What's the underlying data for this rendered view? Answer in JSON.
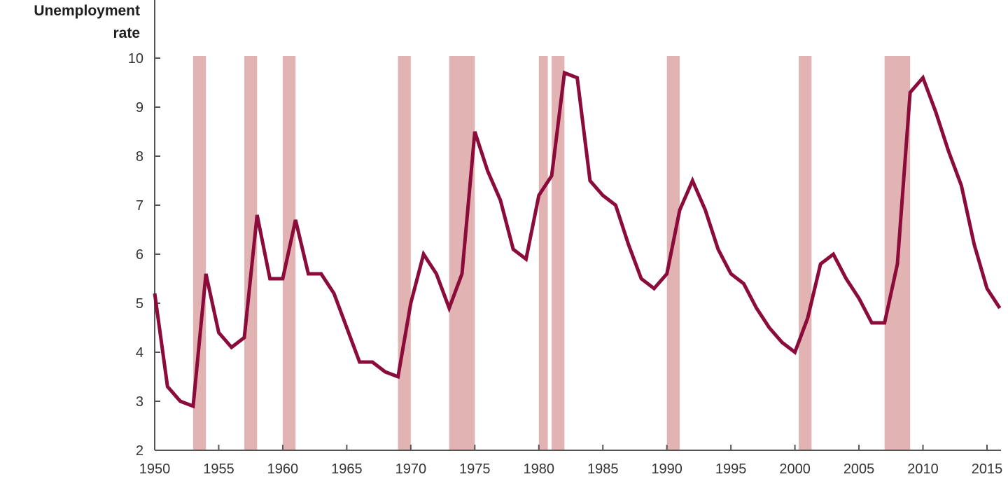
{
  "chart_data": {
    "type": "line",
    "title": "",
    "xlabel": "",
    "ylabel": [
      "Unemployment",
      "rate"
    ],
    "xlim": [
      1950,
      2016
    ],
    "ylim": [
      2,
      10
    ],
    "x_ticks": [
      1950,
      1955,
      1960,
      1965,
      1970,
      1975,
      1980,
      1985,
      1990,
      1995,
      2000,
      2005,
      2010,
      2015
    ],
    "y_ticks": [
      2,
      3,
      4,
      5,
      6,
      7,
      8,
      9,
      10
    ],
    "grid": false,
    "legend": null,
    "series": [
      {
        "name": "Unemployment rate",
        "color": "#8b0b3a",
        "x": [
          1950,
          1951,
          1952,
          1953,
          1954,
          1955,
          1956,
          1957,
          1958,
          1959,
          1960,
          1961,
          1962,
          1963,
          1964,
          1965,
          1966,
          1967,
          1968,
          1969,
          1970,
          1971,
          1972,
          1973,
          1974,
          1975,
          1976,
          1977,
          1978,
          1979,
          1980,
          1981,
          1982,
          1983,
          1984,
          1985,
          1986,
          1987,
          1988,
          1989,
          1990,
          1991,
          1992,
          1993,
          1994,
          1995,
          1996,
          1997,
          1998,
          1999,
          2000,
          2001,
          2002,
          2003,
          2004,
          2005,
          2006,
          2007,
          2008,
          2009,
          2010,
          2011,
          2012,
          2013,
          2014,
          2015,
          2016
        ],
        "values": [
          5.2,
          3.3,
          3.0,
          2.9,
          5.6,
          4.4,
          4.1,
          4.3,
          6.8,
          5.5,
          5.5,
          6.7,
          5.6,
          5.6,
          5.2,
          4.5,
          3.8,
          3.8,
          3.6,
          3.5,
          5.0,
          6.0,
          5.6,
          4.9,
          5.6,
          8.5,
          7.7,
          7.1,
          6.1,
          5.9,
          7.2,
          7.6,
          9.7,
          9.6,
          7.5,
          7.2,
          7.0,
          6.2,
          5.5,
          5.3,
          5.6,
          6.9,
          7.5,
          6.9,
          6.1,
          5.6,
          5.4,
          4.9,
          4.5,
          4.2,
          4.0,
          4.7,
          5.8,
          6.0,
          5.5,
          5.1,
          4.6,
          4.6,
          5.8,
          9.3,
          9.6,
          8.9,
          8.1,
          7.4,
          6.2,
          5.3,
          4.9
        ]
      }
    ],
    "recessions": [
      {
        "start": 1953.0,
        "end": 1954.0
      },
      {
        "start": 1957.0,
        "end": 1958.0
      },
      {
        "start": 1960.0,
        "end": 1961.0
      },
      {
        "start": 1969.0,
        "end": 1970.0
      },
      {
        "start": 1973.0,
        "end": 1975.0
      },
      {
        "start": 1980.0,
        "end": 1980.7
      },
      {
        "start": 1981.0,
        "end": 1982.0
      },
      {
        "start": 1990.0,
        "end": 1991.0
      },
      {
        "start": 2000.3,
        "end": 2001.3
      },
      {
        "start": 2007.0,
        "end": 2009.0
      }
    ],
    "recession_color": "#e2b3b3"
  }
}
